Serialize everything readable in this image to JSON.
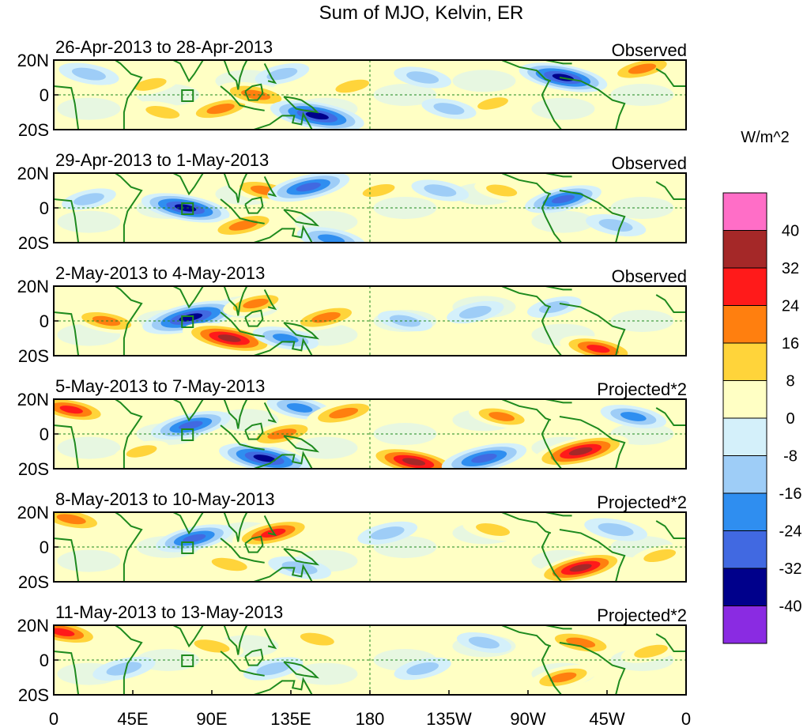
{
  "chart_data": {
    "type": "heatmap",
    "title": "Sum of MJO, Kelvin, ER",
    "unit_label": "W/m^2",
    "x_ticks": [
      "0",
      "45E",
      "90E",
      "135E",
      "180",
      "135W",
      "90W",
      "45W",
      "0"
    ],
    "y_ticks": [
      "20N",
      "0",
      "20S"
    ],
    "xlim": [
      0,
      360
    ],
    "ylim": [
      -20,
      20
    ],
    "colorbar": {
      "levels": [
        "40",
        "32",
        "24",
        "16",
        "8",
        "0",
        "-8",
        "-16",
        "-24",
        "-32",
        "-40"
      ],
      "colors": [
        "#ff6ec7",
        "#a52828",
        "#ff1a1a",
        "#ff7f0f",
        "#ffd43a",
        "#ffffc4",
        "#d4f0fa",
        "#9ecdf7",
        "#2f8ef0",
        "#4169e1",
        "#00008b",
        "#8a2be2"
      ]
    },
    "panels": [
      {
        "date": "26-Apr-2013 to 28-Apr-2013",
        "status": "Observed",
        "anomalies": [
          {
            "lon": 20,
            "lat": 12,
            "value": -14
          },
          {
            "lon": 55,
            "lat": 6,
            "value": 12
          },
          {
            "lon": 62,
            "lat": -10,
            "value": 14
          },
          {
            "lon": 95,
            "lat": -8,
            "value": 22
          },
          {
            "lon": 115,
            "lat": 0,
            "value": 24
          },
          {
            "lon": 130,
            "lat": 12,
            "value": -10
          },
          {
            "lon": 150,
            "lat": -12,
            "value": -38
          },
          {
            "lon": 170,
            "lat": 5,
            "value": 14
          },
          {
            "lon": 210,
            "lat": 10,
            "value": -12
          },
          {
            "lon": 250,
            "lat": -5,
            "value": 10
          },
          {
            "lon": 290,
            "lat": 10,
            "value": -34
          },
          {
            "lon": 335,
            "lat": 15,
            "value": 22
          },
          {
            "lon": 225,
            "lat": -8,
            "value": -10
          }
        ]
      },
      {
        "date": "29-Apr-2013 to 1-May-2013",
        "status": "Observed",
        "anomalies": [
          {
            "lon": 75,
            "lat": 0,
            "value": -34
          },
          {
            "lon": 108,
            "lat": -10,
            "value": 24
          },
          {
            "lon": 120,
            "lat": 10,
            "value": 22
          },
          {
            "lon": 145,
            "lat": 12,
            "value": -30
          },
          {
            "lon": 158,
            "lat": -18,
            "value": -20
          },
          {
            "lon": 185,
            "lat": 10,
            "value": 12
          },
          {
            "lon": 220,
            "lat": 10,
            "value": -12
          },
          {
            "lon": 290,
            "lat": 5,
            "value": -26
          },
          {
            "lon": 320,
            "lat": -10,
            "value": -14
          },
          {
            "lon": 20,
            "lat": 5,
            "value": -10
          },
          {
            "lon": 255,
            "lat": 10,
            "value": 10
          }
        ]
      },
      {
        "date": "2-May-2013 to 4-May-2013",
        "status": "Observed",
        "anomalies": [
          {
            "lon": 30,
            "lat": 0,
            "value": 22
          },
          {
            "lon": 78,
            "lat": 2,
            "value": -40
          },
          {
            "lon": 100,
            "lat": -10,
            "value": 38
          },
          {
            "lon": 115,
            "lat": 10,
            "value": 18
          },
          {
            "lon": 132,
            "lat": -10,
            "value": -18
          },
          {
            "lon": 155,
            "lat": 2,
            "value": 24
          },
          {
            "lon": 200,
            "lat": 0,
            "value": -10
          },
          {
            "lon": 240,
            "lat": 5,
            "value": -12
          },
          {
            "lon": 310,
            "lat": -16,
            "value": 26
          },
          {
            "lon": 285,
            "lat": 8,
            "value": -10
          }
        ]
      },
      {
        "date": "5-May-2013 to 7-May-2013",
        "status": "Projected*2",
        "anomalies": [
          {
            "lon": 10,
            "lat": 14,
            "value": 26
          },
          {
            "lon": 78,
            "lat": 5,
            "value": -28
          },
          {
            "lon": 120,
            "lat": -14,
            "value": -36
          },
          {
            "lon": 130,
            "lat": 0,
            "value": 24
          },
          {
            "lon": 140,
            "lat": 15,
            "value": -18
          },
          {
            "lon": 165,
            "lat": 12,
            "value": 24
          },
          {
            "lon": 205,
            "lat": -16,
            "value": 38
          },
          {
            "lon": 245,
            "lat": -14,
            "value": -32
          },
          {
            "lon": 255,
            "lat": 10,
            "value": 18
          },
          {
            "lon": 300,
            "lat": -10,
            "value": 40
          },
          {
            "lon": 330,
            "lat": 10,
            "value": -18
          },
          {
            "lon": 50,
            "lat": -10,
            "value": 10
          }
        ]
      },
      {
        "date": "8-May-2013 to 10-May-2013",
        "status": "Projected*2",
        "anomalies": [
          {
            "lon": 10,
            "lat": 16,
            "value": 24
          },
          {
            "lon": 80,
            "lat": 5,
            "value": -26
          },
          {
            "lon": 100,
            "lat": -10,
            "value": 16
          },
          {
            "lon": 125,
            "lat": 8,
            "value": 30
          },
          {
            "lon": 140,
            "lat": -12,
            "value": -16
          },
          {
            "lon": 190,
            "lat": 8,
            "value": -14
          },
          {
            "lon": 250,
            "lat": 10,
            "value": 14
          },
          {
            "lon": 300,
            "lat": -12,
            "value": 36
          },
          {
            "lon": 320,
            "lat": 10,
            "value": -16
          },
          {
            "lon": 345,
            "lat": -5,
            "value": 12
          }
        ]
      },
      {
        "date": "11-May-2013 to 13-May-2013",
        "status": "Projected*2",
        "anomalies": [
          {
            "lon": 5,
            "lat": 16,
            "value": 28
          },
          {
            "lon": 40,
            "lat": -5,
            "value": -16
          },
          {
            "lon": 90,
            "lat": 8,
            "value": 16
          },
          {
            "lon": 125,
            "lat": -5,
            "value": -14
          },
          {
            "lon": 150,
            "lat": 12,
            "value": 14
          },
          {
            "lon": 210,
            "lat": -5,
            "value": -12
          },
          {
            "lon": 245,
            "lat": 10,
            "value": -10
          },
          {
            "lon": 290,
            "lat": -10,
            "value": 20
          },
          {
            "lon": 300,
            "lat": 10,
            "value": 24
          },
          {
            "lon": 340,
            "lat": 5,
            "value": 14
          }
        ]
      }
    ]
  }
}
